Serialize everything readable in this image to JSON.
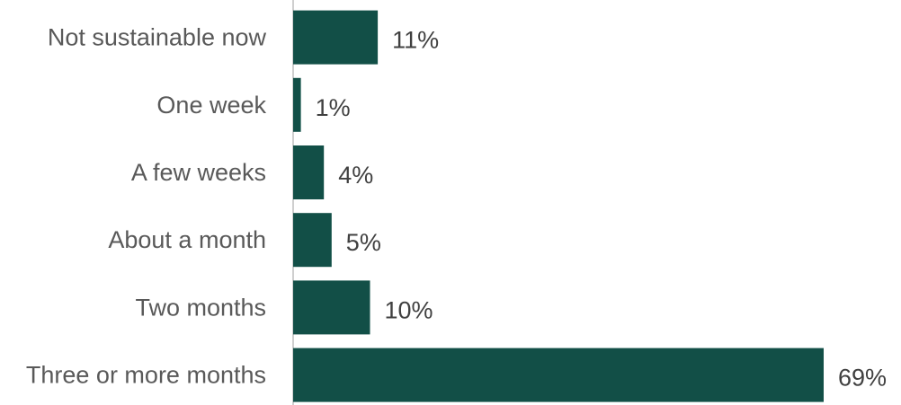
{
  "chart_data": {
    "type": "bar",
    "orientation": "horizontal",
    "title": "",
    "xlabel": "",
    "ylabel": "",
    "categories": [
      "Not sustainable now",
      "One week",
      "A few weeks",
      "About a month",
      "Two months",
      "Three or more months"
    ],
    "values": [
      11,
      1,
      4,
      5,
      10,
      69
    ],
    "value_labels": [
      "11%",
      "1%",
      "4%",
      "5%",
      "10%",
      "69%"
    ],
    "unit": "%",
    "xlim": [
      0,
      69
    ],
    "grid": false,
    "legend": "none",
    "colors": {
      "bar": "#124f47",
      "axis": "#bfbfbf",
      "category_text": "#595959",
      "value_text": "#404040"
    }
  }
}
